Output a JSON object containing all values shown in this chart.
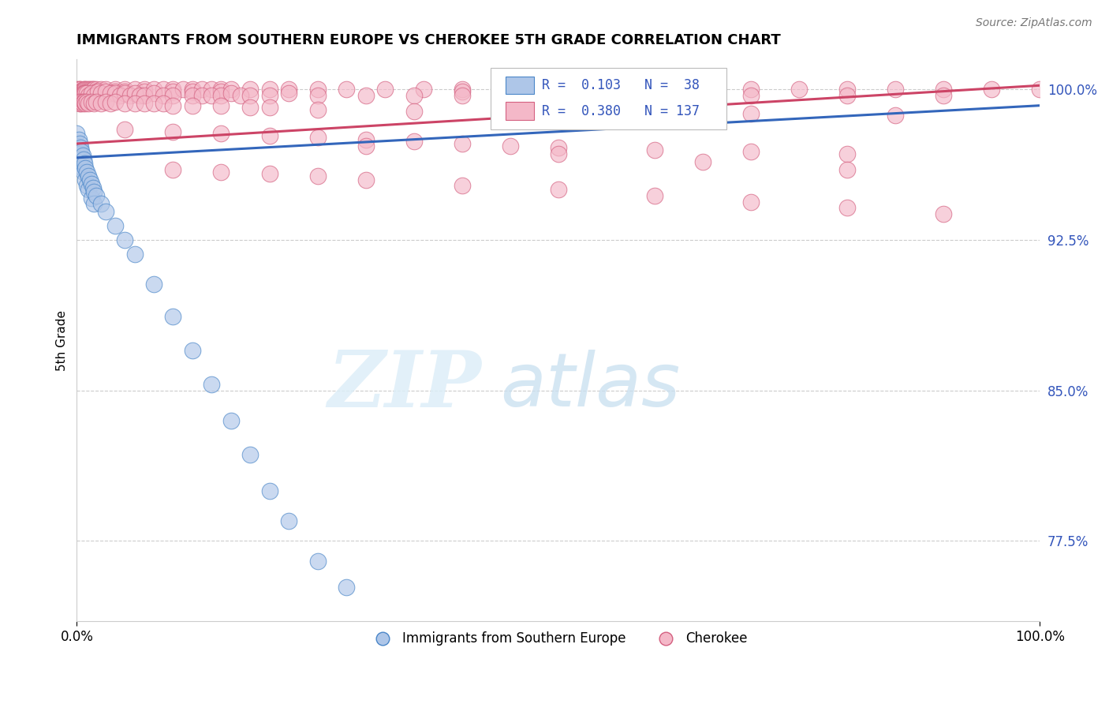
{
  "title": "IMMIGRANTS FROM SOUTHERN EUROPE VS CHEROKEE 5TH GRADE CORRELATION CHART",
  "source_text": "Source: ZipAtlas.com",
  "ylabel": "5th Grade",
  "watermark_zip": "ZIP",
  "watermark_atlas": "atlas",
  "xlim": [
    0.0,
    1.0
  ],
  "ylim": [
    0.735,
    1.015
  ],
  "x_ticks": [
    0.0,
    1.0
  ],
  "x_tick_labels": [
    "0.0%",
    "100.0%"
  ],
  "y_ticks": [
    0.775,
    0.85,
    0.925,
    1.0
  ],
  "y_tick_labels": [
    "77.5%",
    "85.0%",
    "92.5%",
    "100.0%"
  ],
  "blue_color": "#aec6e8",
  "pink_color": "#f4b8c8",
  "blue_edge_color": "#4a86c8",
  "pink_edge_color": "#d46080",
  "blue_line_color": "#3366bb",
  "pink_line_color": "#cc4466",
  "legend_blue_color": "#4a86c8",
  "legend_text_color": "#3355bb",
  "blue_scatter": [
    [
      0.0,
      0.978
    ],
    [
      0.0,
      0.972
    ],
    [
      0.0,
      0.968
    ],
    [
      0.002,
      0.975
    ],
    [
      0.002,
      0.97
    ],
    [
      0.002,
      0.965
    ],
    [
      0.003,
      0.973
    ],
    [
      0.003,
      0.968
    ],
    [
      0.003,
      0.963
    ],
    [
      0.004,
      0.971
    ],
    [
      0.004,
      0.965
    ],
    [
      0.005,
      0.969
    ],
    [
      0.005,
      0.963
    ],
    [
      0.006,
      0.967
    ],
    [
      0.006,
      0.961
    ],
    [
      0.007,
      0.965
    ],
    [
      0.007,
      0.959
    ],
    [
      0.008,
      0.963
    ],
    [
      0.009,
      0.961
    ],
    [
      0.009,
      0.955
    ],
    [
      0.01,
      0.959
    ],
    [
      0.01,
      0.952
    ],
    [
      0.012,
      0.957
    ],
    [
      0.012,
      0.95
    ],
    [
      0.014,
      0.955
    ],
    [
      0.015,
      0.953
    ],
    [
      0.015,
      0.946
    ],
    [
      0.017,
      0.951
    ],
    [
      0.018,
      0.949
    ],
    [
      0.018,
      0.943
    ],
    [
      0.02,
      0.947
    ],
    [
      0.025,
      0.943
    ],
    [
      0.03,
      0.939
    ],
    [
      0.04,
      0.932
    ],
    [
      0.05,
      0.925
    ],
    [
      0.06,
      0.918
    ],
    [
      0.08,
      0.903
    ],
    [
      0.1,
      0.887
    ],
    [
      0.12,
      0.87
    ],
    [
      0.14,
      0.853
    ],
    [
      0.16,
      0.835
    ],
    [
      0.18,
      0.818
    ],
    [
      0.2,
      0.8
    ],
    [
      0.22,
      0.785
    ],
    [
      0.25,
      0.765
    ],
    [
      0.28,
      0.752
    ]
  ],
  "pink_scatter": [
    [
      0.0,
      1.0
    ],
    [
      0.0,
      0.999
    ],
    [
      0.0,
      0.998
    ],
    [
      0.0,
      0.997
    ],
    [
      0.0,
      0.996
    ],
    [
      0.0,
      0.995
    ],
    [
      0.0,
      0.994
    ],
    [
      0.002,
      1.0
    ],
    [
      0.002,
      0.999
    ],
    [
      0.002,
      0.998
    ],
    [
      0.003,
      1.0
    ],
    [
      0.003,
      0.999
    ],
    [
      0.003,
      0.998
    ],
    [
      0.004,
      1.0
    ],
    [
      0.004,
      0.999
    ],
    [
      0.005,
      0.999
    ],
    [
      0.005,
      0.998
    ],
    [
      0.006,
      0.999
    ],
    [
      0.007,
      1.0
    ],
    [
      0.007,
      0.999
    ],
    [
      0.008,
      1.0
    ],
    [
      0.009,
      1.0
    ],
    [
      0.01,
      1.0
    ],
    [
      0.012,
      1.0
    ],
    [
      0.012,
      0.999
    ],
    [
      0.014,
      1.0
    ],
    [
      0.015,
      1.0
    ],
    [
      0.015,
      0.999
    ],
    [
      0.017,
      1.0
    ],
    [
      0.018,
      1.0
    ],
    [
      0.02,
      1.0
    ],
    [
      0.02,
      0.999
    ],
    [
      0.025,
      1.0
    ],
    [
      0.03,
      1.0
    ],
    [
      0.04,
      1.0
    ],
    [
      0.04,
      0.999
    ],
    [
      0.05,
      1.0
    ],
    [
      0.05,
      0.999
    ],
    [
      0.06,
      1.0
    ],
    [
      0.07,
      1.0
    ],
    [
      0.07,
      0.999
    ],
    [
      0.08,
      1.0
    ],
    [
      0.09,
      1.0
    ],
    [
      0.1,
      1.0
    ],
    [
      0.1,
      0.999
    ],
    [
      0.11,
      1.0
    ],
    [
      0.12,
      1.0
    ],
    [
      0.12,
      0.999
    ],
    [
      0.13,
      1.0
    ],
    [
      0.14,
      1.0
    ],
    [
      0.15,
      1.0
    ],
    [
      0.15,
      0.999
    ],
    [
      0.16,
      1.0
    ],
    [
      0.18,
      1.0
    ],
    [
      0.2,
      1.0
    ],
    [
      0.22,
      1.0
    ],
    [
      0.25,
      1.0
    ],
    [
      0.28,
      1.0
    ],
    [
      0.32,
      1.0
    ],
    [
      0.36,
      1.0
    ],
    [
      0.4,
      1.0
    ],
    [
      0.4,
      0.999
    ],
    [
      0.45,
      1.0
    ],
    [
      0.5,
      1.0
    ],
    [
      0.55,
      1.0
    ],
    [
      0.6,
      1.0
    ],
    [
      0.6,
      0.999
    ],
    [
      0.65,
      1.0
    ],
    [
      0.7,
      1.0
    ],
    [
      0.75,
      1.0
    ],
    [
      0.8,
      1.0
    ],
    [
      0.85,
      1.0
    ],
    [
      0.9,
      1.0
    ],
    [
      0.95,
      1.0
    ],
    [
      1.0,
      1.0
    ],
    [
      0.003,
      0.996
    ],
    [
      0.004,
      0.995
    ],
    [
      0.005,
      0.996
    ],
    [
      0.006,
      0.997
    ],
    [
      0.007,
      0.998
    ],
    [
      0.008,
      0.998
    ],
    [
      0.009,
      0.998
    ],
    [
      0.01,
      0.998
    ],
    [
      0.012,
      0.997
    ],
    [
      0.015,
      0.998
    ],
    [
      0.018,
      0.997
    ],
    [
      0.022,
      0.999
    ],
    [
      0.025,
      0.998
    ],
    [
      0.03,
      0.999
    ],
    [
      0.035,
      0.998
    ],
    [
      0.04,
      0.998
    ],
    [
      0.045,
      0.997
    ],
    [
      0.05,
      0.998
    ],
    [
      0.055,
      0.997
    ],
    [
      0.06,
      0.998
    ],
    [
      0.065,
      0.997
    ],
    [
      0.07,
      0.997
    ],
    [
      0.08,
      0.998
    ],
    [
      0.09,
      0.997
    ],
    [
      0.1,
      0.997
    ],
    [
      0.12,
      0.997
    ],
    [
      0.13,
      0.997
    ],
    [
      0.14,
      0.997
    ],
    [
      0.15,
      0.997
    ],
    [
      0.16,
      0.998
    ],
    [
      0.17,
      0.997
    ],
    [
      0.18,
      0.997
    ],
    [
      0.2,
      0.997
    ],
    [
      0.22,
      0.998
    ],
    [
      0.25,
      0.997
    ],
    [
      0.3,
      0.997
    ],
    [
      0.35,
      0.997
    ],
    [
      0.4,
      0.997
    ],
    [
      0.45,
      0.997
    ],
    [
      0.5,
      0.997
    ],
    [
      0.55,
      0.997
    ],
    [
      0.6,
      0.997
    ],
    [
      0.7,
      0.997
    ],
    [
      0.8,
      0.997
    ],
    [
      0.9,
      0.997
    ],
    [
      0.002,
      0.994
    ],
    [
      0.003,
      0.993
    ],
    [
      0.004,
      0.993
    ],
    [
      0.005,
      0.994
    ],
    [
      0.006,
      0.993
    ],
    [
      0.007,
      0.994
    ],
    [
      0.008,
      0.994
    ],
    [
      0.009,
      0.993
    ],
    [
      0.01,
      0.994
    ],
    [
      0.012,
      0.993
    ],
    [
      0.015,
      0.994
    ],
    [
      0.018,
      0.993
    ],
    [
      0.02,
      0.994
    ],
    [
      0.025,
      0.993
    ],
    [
      0.03,
      0.994
    ],
    [
      0.035,
      0.993
    ],
    [
      0.04,
      0.994
    ],
    [
      0.05,
      0.993
    ],
    [
      0.06,
      0.993
    ],
    [
      0.07,
      0.993
    ],
    [
      0.08,
      0.993
    ],
    [
      0.09,
      0.993
    ],
    [
      0.1,
      0.992
    ],
    [
      0.12,
      0.992
    ],
    [
      0.15,
      0.992
    ],
    [
      0.18,
      0.991
    ],
    [
      0.2,
      0.991
    ],
    [
      0.25,
      0.99
    ],
    [
      0.35,
      0.989
    ],
    [
      0.45,
      0.989
    ],
    [
      0.55,
      0.988
    ],
    [
      0.7,
      0.988
    ],
    [
      0.85,
      0.987
    ],
    [
      0.05,
      0.98
    ],
    [
      0.1,
      0.979
    ],
    [
      0.15,
      0.978
    ],
    [
      0.2,
      0.977
    ],
    [
      0.25,
      0.976
    ],
    [
      0.3,
      0.975
    ],
    [
      0.35,
      0.974
    ],
    [
      0.4,
      0.973
    ],
    [
      0.45,
      0.972
    ],
    [
      0.5,
      0.971
    ],
    [
      0.6,
      0.97
    ],
    [
      0.7,
      0.969
    ],
    [
      0.8,
      0.968
    ],
    [
      0.1,
      0.96
    ],
    [
      0.15,
      0.959
    ],
    [
      0.2,
      0.958
    ],
    [
      0.25,
      0.957
    ],
    [
      0.3,
      0.955
    ],
    [
      0.4,
      0.952
    ],
    [
      0.5,
      0.95
    ],
    [
      0.6,
      0.947
    ],
    [
      0.7,
      0.944
    ],
    [
      0.8,
      0.941
    ],
    [
      0.9,
      0.938
    ],
    [
      0.3,
      0.972
    ],
    [
      0.5,
      0.968
    ],
    [
      0.65,
      0.964
    ],
    [
      0.8,
      0.96
    ]
  ],
  "blue_trendline_x": [
    0.0,
    1.0
  ],
  "blue_trendline_y": [
    0.966,
    0.992
  ],
  "pink_trendline_x": [
    0.0,
    1.0
  ],
  "pink_trendline_y": [
    0.973,
    1.002
  ]
}
